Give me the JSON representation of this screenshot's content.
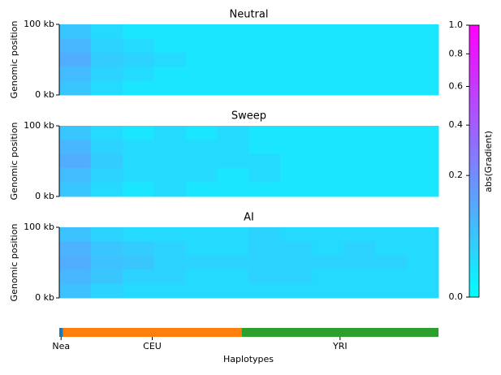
{
  "chart_data": {
    "type": "heatmap",
    "panels": [
      {
        "title": "Neutral",
        "z": [
          [
            0.05,
            0.02,
            0.01,
            0.01,
            0.01,
            0.01,
            0.01,
            0.01,
            0.01,
            0.01,
            0.01,
            0.01
          ],
          [
            0.08,
            0.03,
            0.02,
            0.01,
            0.01,
            0.01,
            0.01,
            0.01,
            0.01,
            0.01,
            0.01,
            0.01
          ],
          [
            0.1,
            0.04,
            0.03,
            0.02,
            0.01,
            0.01,
            0.01,
            0.01,
            0.01,
            0.01,
            0.01,
            0.01
          ],
          [
            0.07,
            0.03,
            0.02,
            0.01,
            0.01,
            0.01,
            0.01,
            0.01,
            0.01,
            0.01,
            0.01,
            0.01
          ],
          [
            0.05,
            0.02,
            0.01,
            0.01,
            0.01,
            0.01,
            0.01,
            0.01,
            0.01,
            0.01,
            0.01,
            0.01
          ]
        ]
      },
      {
        "title": "Sweep",
        "z": [
          [
            0.05,
            0.02,
            0.01,
            0.02,
            0.01,
            0.02,
            0.01,
            0.01,
            0.01,
            0.01,
            0.01,
            0.01
          ],
          [
            0.08,
            0.03,
            0.02,
            0.02,
            0.02,
            0.02,
            0.01,
            0.01,
            0.01,
            0.01,
            0.01,
            0.01
          ],
          [
            0.1,
            0.04,
            0.02,
            0.02,
            0.02,
            0.02,
            0.02,
            0.01,
            0.01,
            0.01,
            0.01,
            0.01
          ],
          [
            0.07,
            0.03,
            0.02,
            0.02,
            0.02,
            0.01,
            0.02,
            0.01,
            0.01,
            0.01,
            0.01,
            0.01
          ],
          [
            0.05,
            0.02,
            0.01,
            0.02,
            0.01,
            0.01,
            0.01,
            0.01,
            0.01,
            0.01,
            0.01,
            0.01
          ]
        ]
      },
      {
        "title": "AI",
        "z": [
          [
            0.06,
            0.03,
            0.02,
            0.02,
            0.02,
            0.02,
            0.03,
            0.02,
            0.02,
            0.02,
            0.02,
            0.02
          ],
          [
            0.09,
            0.05,
            0.04,
            0.03,
            0.02,
            0.02,
            0.03,
            0.03,
            0.02,
            0.03,
            0.02,
            0.02
          ],
          [
            0.1,
            0.06,
            0.05,
            0.03,
            0.03,
            0.03,
            0.03,
            0.03,
            0.03,
            0.03,
            0.03,
            0.02
          ],
          [
            0.08,
            0.05,
            0.03,
            0.03,
            0.02,
            0.02,
            0.03,
            0.03,
            0.02,
            0.02,
            0.02,
            0.02
          ],
          [
            0.06,
            0.03,
            0.02,
            0.02,
            0.02,
            0.02,
            0.02,
            0.02,
            0.02,
            0.02,
            0.02,
            0.02
          ]
        ]
      }
    ],
    "ylabel": "Genomic position",
    "ylim": [
      0,
      100
    ],
    "yticks": [
      {
        "value": 100,
        "label": "100 kb"
      },
      {
        "value": 0,
        "label": "0 kb"
      }
    ],
    "colorbar": {
      "label": "abs(Gradient)",
      "lim": [
        0,
        1
      ],
      "scale": "sqrt",
      "colormap": "cool",
      "ticks": [
        {
          "value": 0,
          "label": "0.0"
        },
        0.2,
        0.4,
        0.6,
        0.8,
        {
          "value": 1,
          "label": "1.0"
        }
      ]
    },
    "haplotypes": {
      "categories": [
        "Nea",
        "CEU",
        "YRI"
      ],
      "values": [
        2,
        99,
        109
      ],
      "colors": [
        "#1f77b4",
        "#ff7f0e",
        "#2ca02c"
      ]
    },
    "xlabel": "Haplotypes"
  }
}
